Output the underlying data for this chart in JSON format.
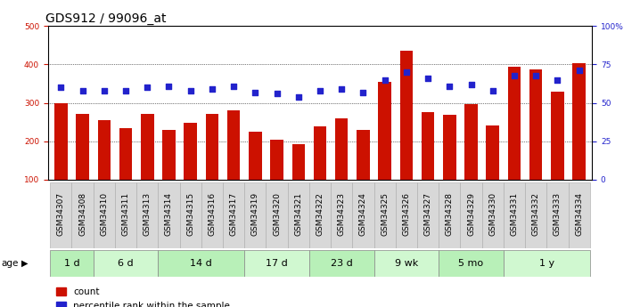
{
  "title": "GDS912 / 99096_at",
  "samples": [
    "GSM34307",
    "GSM34308",
    "GSM34310",
    "GSM34311",
    "GSM34313",
    "GSM34314",
    "GSM34315",
    "GSM34316",
    "GSM34317",
    "GSM34319",
    "GSM34320",
    "GSM34321",
    "GSM34322",
    "GSM34323",
    "GSM34324",
    "GSM34325",
    "GSM34326",
    "GSM34327",
    "GSM34328",
    "GSM34329",
    "GSM34330",
    "GSM34331",
    "GSM34332",
    "GSM34333",
    "GSM34334"
  ],
  "counts": [
    298,
    272,
    256,
    233,
    272,
    230,
    248,
    272,
    280,
    225,
    205,
    192,
    238,
    260,
    230,
    355,
    435,
    275,
    270,
    297,
    240,
    393,
    388,
    330,
    403
  ],
  "percentiles": [
    60,
    58,
    58,
    58,
    60,
    61,
    58,
    59,
    61,
    57,
    56,
    54,
    58,
    59,
    57,
    65,
    70,
    66,
    61,
    62,
    58,
    68,
    68,
    65,
    71
  ],
  "age_groups": [
    {
      "label": "1 d",
      "start": 0,
      "end": 2
    },
    {
      "label": "6 d",
      "start": 2,
      "end": 5
    },
    {
      "label": "14 d",
      "start": 5,
      "end": 9
    },
    {
      "label": "17 d",
      "start": 9,
      "end": 12
    },
    {
      "label": "23 d",
      "start": 12,
      "end": 15
    },
    {
      "label": "9 wk",
      "start": 15,
      "end": 18
    },
    {
      "label": "5 mo",
      "start": 18,
      "end": 21
    },
    {
      "label": "1 y",
      "start": 21,
      "end": 25
    }
  ],
  "bar_color": "#cc1100",
  "dot_color": "#2222cc",
  "left_ylim": [
    100,
    500
  ],
  "right_ylim": [
    0,
    100
  ],
  "left_yticks": [
    100,
    200,
    300,
    400,
    500
  ],
  "right_yticks": [
    0,
    25,
    50,
    75,
    100
  ],
  "right_yticklabels": [
    "0",
    "25",
    "50",
    "75",
    "100%"
  ],
  "grid_values": [
    200,
    300,
    400
  ],
  "age_colors": [
    "#b8f0b8",
    "#d0f8d0"
  ],
  "background_color": "#ffffff",
  "title_fontsize": 10,
  "tick_fontsize": 6.5,
  "age_fontsize": 8,
  "label_fontsize": 7.5
}
